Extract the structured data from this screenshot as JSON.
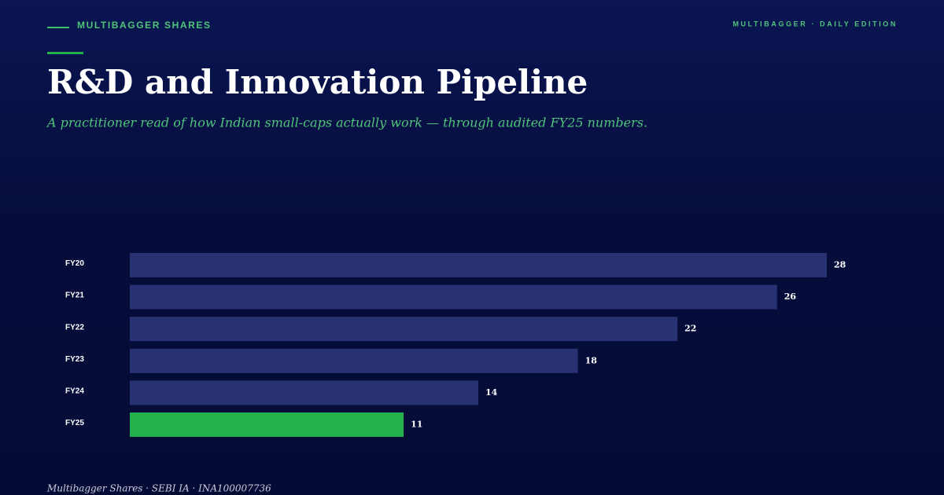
{
  "header": {
    "brand": "MULTIBAGGER SHARES",
    "edition": "MULTIBAGGER · DAILY EDITION"
  },
  "chart_data": {
    "type": "bar",
    "title": "R&D and Innovation Pipeline",
    "subtitle": "A practitioner read of how Indian small-caps actually work — through audited FY25 numbers.",
    "categories": [
      "FY20",
      "FY21",
      "FY22",
      "FY23",
      "FY24",
      "FY25"
    ],
    "values": [
      28,
      26,
      22,
      18,
      14,
      11
    ],
    "colors": [
      "#283272",
      "#283272",
      "#283272",
      "#283272",
      "#283272",
      "#22b14c"
    ]
  },
  "footer": "Multibagger Shares · SEBI IA · INA100007736"
}
